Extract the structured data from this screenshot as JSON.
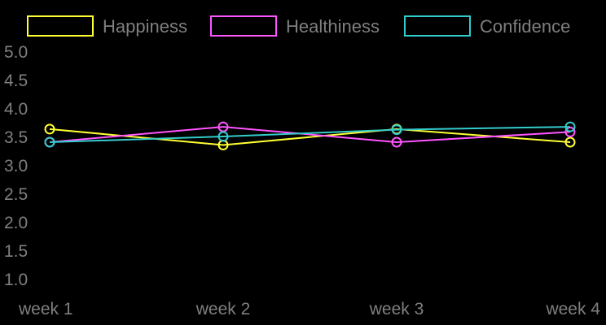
{
  "chart_data": {
    "type": "line",
    "categories": [
      "week 1",
      "week 2",
      "week 3",
      "week 4"
    ],
    "series": [
      {
        "name": "Happiness",
        "values": [
          3.63,
          3.35,
          3.63,
          3.4
        ],
        "color": "#ffff33"
      },
      {
        "name": "Healthiness",
        "values": [
          3.4,
          3.67,
          3.4,
          3.58
        ],
        "color": "#ff55ff"
      },
      {
        "name": "Confidence",
        "values": [
          3.4,
          3.5,
          3.62,
          3.67
        ],
        "color": "#33cccc"
      }
    ],
    "y_ticks": [
      "1.0",
      "1.5",
      "2.0",
      "2.5",
      "3.0",
      "3.5",
      "4.0",
      "4.5",
      "5.0"
    ],
    "ylim": [
      1.0,
      5.0
    ],
    "grid": false,
    "legend_position": "top",
    "title": "",
    "xlabel": "",
    "ylabel": ""
  }
}
